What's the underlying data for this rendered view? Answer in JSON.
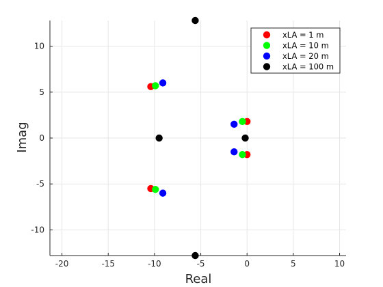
{
  "chart_data": {
    "type": "scatter",
    "title": "",
    "xlabel": "Real",
    "ylabel": "Imag",
    "xlim": [
      -21.3,
      10.7
    ],
    "ylim": [
      -12.8,
      12.8
    ],
    "xticks": [
      -20,
      -15,
      -10,
      -5,
      0,
      5,
      10
    ],
    "yticks": [
      -10,
      -5,
      0,
      5,
      10
    ],
    "grid": true,
    "legend_position": "top-right",
    "series": [
      {
        "name": "xLA = 1 m",
        "color": "#ff0000",
        "points": [
          [
            -10.4,
            5.6
          ],
          [
            -10.4,
            -5.5
          ],
          [
            0.0,
            1.8
          ],
          [
            0.0,
            -1.8
          ]
        ]
      },
      {
        "name": "xLA = 10 m",
        "color": "#00ff00",
        "points": [
          [
            -9.9,
            5.7
          ],
          [
            -9.9,
            -5.6
          ],
          [
            -0.5,
            1.8
          ],
          [
            -0.5,
            -1.8
          ]
        ]
      },
      {
        "name": "xLA = 20 m",
        "color": "#0000ff",
        "points": [
          [
            -9.1,
            6.0
          ],
          [
            -9.1,
            -6.0
          ],
          [
            -1.4,
            1.5
          ],
          [
            -1.4,
            -1.5
          ]
        ]
      },
      {
        "name": "xLA = 100 m",
        "color": "#000000",
        "points": [
          [
            -5.6,
            12.8
          ],
          [
            -5.6,
            -12.8
          ],
          [
            -9.5,
            0.0
          ],
          [
            -0.2,
            0.0
          ]
        ]
      }
    ]
  }
}
